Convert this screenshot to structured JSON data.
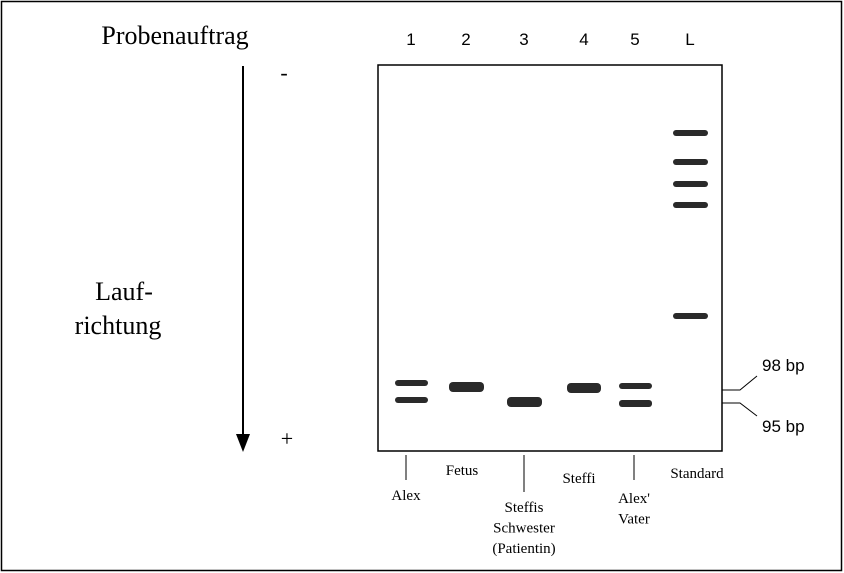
{
  "header": {
    "title": "Probenauftrag"
  },
  "direction": {
    "lines": [
      "Lauf-",
      "richtung"
    ],
    "minus": "-",
    "plus": "+"
  },
  "lanes": [
    {
      "number": "1",
      "label": [
        "Alex"
      ]
    },
    {
      "number": "2",
      "label": [
        "Fetus"
      ]
    },
    {
      "number": "3",
      "label": [
        "Steffis",
        "Schwester",
        "(Patientin)"
      ]
    },
    {
      "number": "4",
      "label": [
        "Steffi"
      ]
    },
    {
      "number": "5",
      "label": [
        "Alex'",
        "Vater"
      ]
    },
    {
      "number": "L",
      "label": [
        "Standard"
      ]
    }
  ],
  "markers": [
    "98 bp",
    "95 bp"
  ]
}
